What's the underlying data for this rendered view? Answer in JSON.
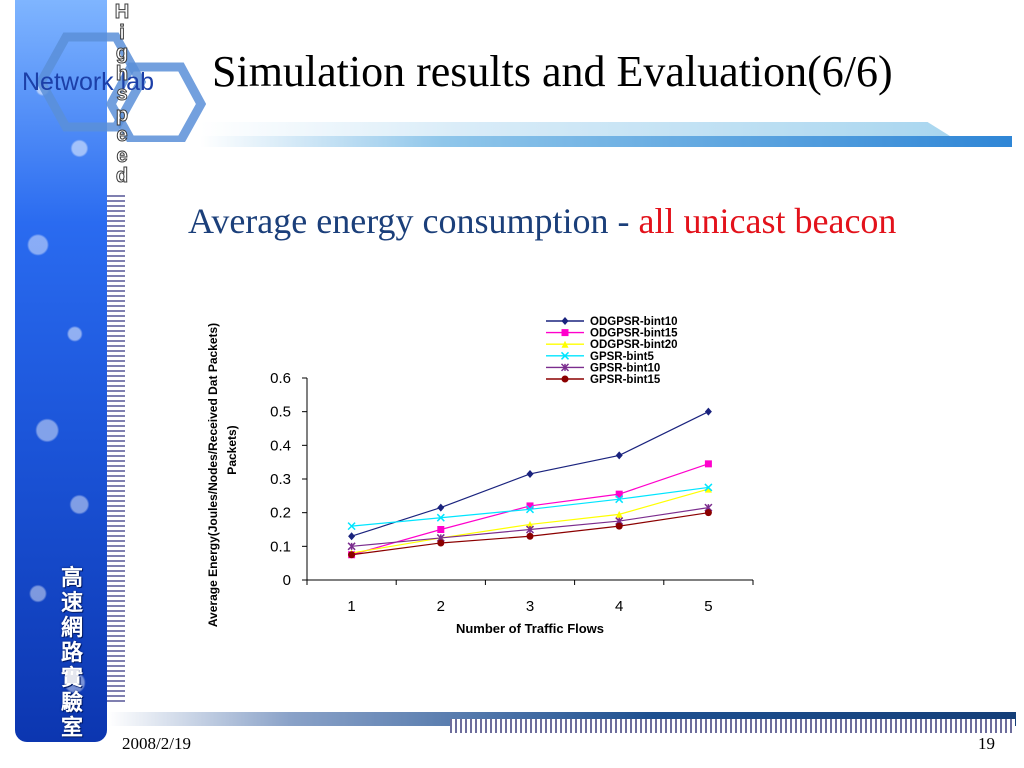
{
  "slide": {
    "logo_text": "Network lab",
    "logo_vertical": "Highspeed",
    "title": "Simulation results and Evaluation(6/6)",
    "subtitle_blue": "Average energy consumption - ",
    "subtitle_red": "all unicast beacon",
    "lab_name_vertical": "高速網路實驗室",
    "footer_date": "2008/2/19",
    "footer_page": "19"
  },
  "colors": {
    "title_rule": "#2f86d6",
    "subtitle_blue": "#1b3f7a",
    "subtitle_red": "#e3121b"
  },
  "chart_data": {
    "type": "line",
    "title": "",
    "xlabel": "Number of Traffic Flows",
    "ylabel": "Average Energy(Joules/Nodes/Received Dat Packets)",
    "x": [
      1,
      2,
      3,
      4,
      5
    ],
    "xticks": [
      "1",
      "2",
      "3",
      "4",
      "5"
    ],
    "yticks": [
      "0",
      "0.1",
      "0.2",
      "0.3",
      "0.4",
      "0.5",
      "0.6"
    ],
    "ylim": [
      0,
      0.6
    ],
    "legend_position": "top",
    "grid": false,
    "series": [
      {
        "name": "ODGPSR-bint10",
        "color": "#1a237e",
        "marker": "diamond",
        "values": [
          0.13,
          0.215,
          0.315,
          0.37,
          0.5
        ]
      },
      {
        "name": "ODGPSR-bint15",
        "color": "#ff00cc",
        "marker": "square",
        "values": [
          0.075,
          0.15,
          0.22,
          0.255,
          0.345
        ]
      },
      {
        "name": "ODGPSR-bint20",
        "color": "#ffff00",
        "marker": "triangle",
        "values": [
          0.08,
          0.125,
          0.165,
          0.195,
          0.27
        ]
      },
      {
        "name": "GPSR-bint5",
        "color": "#00e5ff",
        "marker": "x",
        "values": [
          0.16,
          0.185,
          0.21,
          0.24,
          0.275
        ]
      },
      {
        "name": "GPSR-bint10",
        "color": "#7b2d8e",
        "marker": "asterisk",
        "values": [
          0.1,
          0.125,
          0.15,
          0.175,
          0.215
        ]
      },
      {
        "name": "GPSR-bint15",
        "color": "#8b0000",
        "marker": "circle",
        "values": [
          0.075,
          0.11,
          0.13,
          0.16,
          0.2
        ]
      }
    ]
  }
}
